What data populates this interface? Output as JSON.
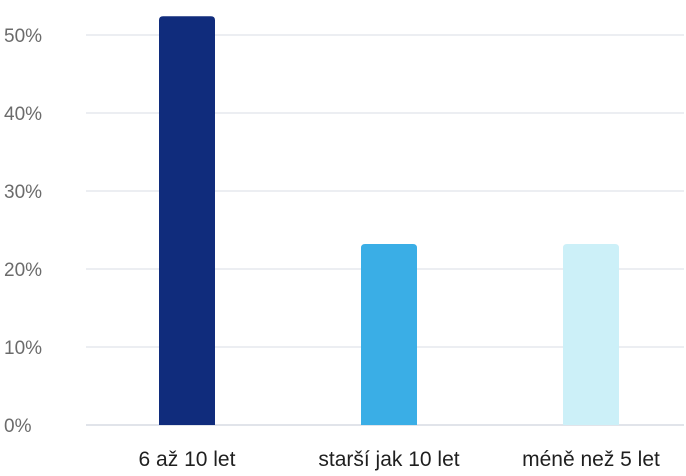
{
  "chart_data": {
    "type": "bar",
    "categories": [
      "6 až 10 let",
      "starší jak 10 let",
      "méně než 5 let"
    ],
    "values": [
      52.4,
      23.2,
      23.2
    ],
    "colors": [
      "#102c7c",
      "#3aaee6",
      "#ccf0f8"
    ],
    "ylim": [
      0,
      50
    ],
    "yticks": [
      0,
      10,
      20,
      30,
      40,
      50
    ],
    "ytick_labels": [
      "0%",
      "10%",
      "20%",
      "30%",
      "40%",
      "50%"
    ],
    "grid": true,
    "legend": "none"
  }
}
